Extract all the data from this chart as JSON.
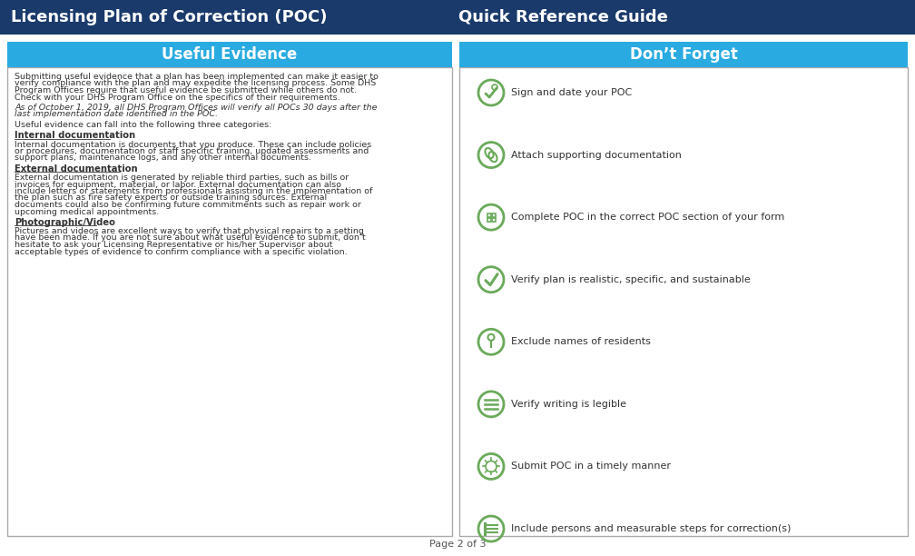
{
  "title_left": "Licensing Plan of Correction (POC)",
  "title_right": "Quick Reference Guide",
  "header_bg": "#1a3a6b",
  "header_text_color": "#ffffff",
  "section_left_title": "Useful Evidence",
  "section_right_title": "Don’t Forget",
  "section_header_bg": "#29abe2",
  "section_header_text": "#ffffff",
  "section_body_bg": "#ffffff",
  "section_border_color": "#aaaaaa",
  "body_text_color": "#333333",
  "icon_color": "#6aaa5a",
  "left_paragraphs": [
    "Submitting useful evidence that a plan has been implemented can make it easier to\nverify compliance with the plan and may expedite the licensing process. Some DHS\nProgram Offices require that useful evidence be submitted while others do not.\nCheck with your DHS Program Office on the specifics of their requirements.",
    "As of October 1, 2019, all DHS Program Offices will verify all POCs 30 days after the\nlast implementation date identified in the POC.",
    "Useful evidence can fall into the following three categories:"
  ],
  "internal_title": "Internal documentation",
  "internal_body": "Internal documentation is documents that you produce. These can include policies\nor procedures, documentation of staff specific training, updated assessments and\nsupport plans, maintenance logs, and any other internal documents.",
  "external_title": "External documentation",
  "external_body": "External documentation is generated by reliable third parties, such as bills or\ninvoices for equipment, material, or labor. External documentation can also\ninclude letters or statements from professionals assisting in the implementation of\nthe plan such as fire safety experts or outside training sources. External\ndocuments could also be confirming future commitments such as repair work or\nupcoming medical appointments.",
  "photo_title": "Photographic/Video",
  "photo_body": "Pictures and videos are excellent ways to verify that physical repairs to a setting\nhave been made. If you are not sure about what useful evidence to submit, don’t\nhesitate to ask your Licensing Representative or his/her Supervisor about\nacceptable types of evidence to confirm compliance with a specific violation.",
  "right_items": [
    "Sign and date your POC",
    "Attach supporting documentation",
    "Complete POC in the correct POC section of your form",
    "Verify plan is realistic, specific, and sustainable",
    "Exclude names of residents",
    "Verify writing is legible",
    "Submit POC in a timely manner",
    "Include persons and measurable steps for correction(s)"
  ],
  "footer_text": "Page 2 of 3",
  "footer_color": "#555555"
}
